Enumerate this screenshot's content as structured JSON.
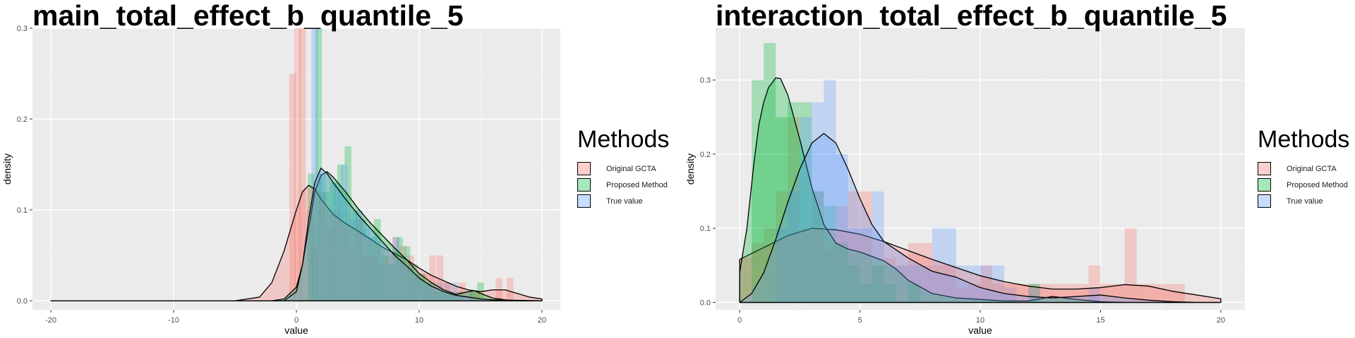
{
  "legend": {
    "title": "Methods",
    "items": [
      {
        "label": "Original GCTA",
        "color": "#F8766D"
      },
      {
        "label": "Proposed Method",
        "color": "#00BA38"
      },
      {
        "label": "True value",
        "color": "#619CFF"
      }
    ]
  },
  "chart_data": [
    {
      "type": "area",
      "title": "main_total_effect_b_quantile_5",
      "xlabel": "value",
      "ylabel": "density",
      "xlim": [
        -21.5,
        21.5
      ],
      "ylim": [
        -0.01,
        0.3
      ],
      "xticks": [
        -20,
        -10,
        0,
        10,
        20
      ],
      "xtick_labels": [
        "-20",
        "-10",
        "0",
        "10",
        "20"
      ],
      "yticks": [
        0.0,
        0.1,
        0.2,
        0.3
      ],
      "ytick_labels": [
        "0.0",
        "0.1",
        "0.2",
        "0.3"
      ],
      "grid": true,
      "legend_position": "right",
      "histograms": [
        {
          "name": "Original GCTA",
          "bins": [
            [
              -0.3,
              0.25
            ],
            [
              0.1,
              0.3
            ],
            [
              0.5,
              0.3
            ],
            [
              1.1,
              0.1
            ],
            [
              1.5,
              0.06
            ],
            [
              2.1,
              0.12
            ],
            [
              2.7,
              0.08
            ],
            [
              3.3,
              0.1
            ],
            [
              3.9,
              0.08
            ],
            [
              4.5,
              0.06
            ],
            [
              5.1,
              0.09
            ],
            [
              5.7,
              0.05
            ],
            [
              6.3,
              0.05
            ],
            [
              6.9,
              0.04
            ],
            [
              7.5,
              0.05
            ],
            [
              8.1,
              0.07
            ],
            [
              8.7,
              0.06
            ],
            [
              9.3,
              0.05
            ],
            [
              9.9,
              0.03
            ],
            [
              10.5,
              0.03
            ],
            [
              11.1,
              0.05
            ],
            [
              11.7,
              0.05
            ],
            [
              12.3,
              0.02
            ],
            [
              12.9,
              0.01
            ],
            [
              13.5,
              0.02
            ],
            [
              14.1,
              0.01
            ],
            [
              14.7,
              0.01
            ],
            [
              16.5,
              0.025
            ],
            [
              17.4,
              0.025
            ]
          ]
        },
        {
          "name": "Proposed Method",
          "bins": [
            [
              1.2,
              0.14
            ],
            [
              1.8,
              0.3
            ],
            [
              2.4,
              0.12
            ],
            [
              3.0,
              0.13
            ],
            [
              3.6,
              0.15
            ],
            [
              4.2,
              0.17
            ],
            [
              4.8,
              0.1
            ],
            [
              5.4,
              0.09
            ],
            [
              6.0,
              0.07
            ],
            [
              6.6,
              0.09
            ],
            [
              7.2,
              0.05
            ],
            [
              7.8,
              0.04
            ],
            [
              8.4,
              0.07
            ],
            [
              9.0,
              0.06
            ],
            [
              9.6,
              0.04
            ],
            [
              10.2,
              0.03
            ],
            [
              10.8,
              0.02
            ],
            [
              11.4,
              0.01
            ],
            [
              12.0,
              0.01
            ],
            [
              12.6,
              0.01
            ],
            [
              13.2,
              0.01
            ],
            [
              14.4,
              0.01
            ],
            [
              15.0,
              0.02
            ]
          ]
        },
        {
          "name": "True value",
          "bins": [
            [
              1.5,
              0.3
            ],
            [
              2.1,
              0.14
            ],
            [
              2.7,
              0.1
            ],
            [
              3.3,
              0.13
            ],
            [
              3.9,
              0.15
            ],
            [
              4.5,
              0.09
            ],
            [
              5.1,
              0.1
            ],
            [
              5.7,
              0.08
            ],
            [
              6.3,
              0.07
            ],
            [
              6.9,
              0.06
            ],
            [
              7.5,
              0.04
            ],
            [
              8.1,
              0.07
            ],
            [
              8.7,
              0.05
            ],
            [
              9.3,
              0.04
            ],
            [
              9.9,
              0.03
            ],
            [
              10.5,
              0.02
            ],
            [
              11.1,
              0.02
            ],
            [
              11.7,
              0.02
            ],
            [
              12.3,
              0.02
            ],
            [
              12.9,
              0.02
            ],
            [
              13.5,
              0.01
            ],
            [
              14.1,
              0.01
            ]
          ]
        }
      ],
      "densities": [
        {
          "name": "Original GCTA",
          "x": [
            -20,
            -5,
            -3,
            -2,
            -1,
            0,
            0.5,
            1,
            1.5,
            2,
            3,
            4,
            5,
            6,
            7,
            8,
            9,
            10,
            11,
            12,
            13,
            14,
            15,
            16,
            17,
            18,
            19,
            20
          ],
          "y": [
            0,
            0,
            0.004,
            0.02,
            0.055,
            0.1,
            0.12,
            0.127,
            0.123,
            0.112,
            0.095,
            0.085,
            0.077,
            0.068,
            0.059,
            0.052,
            0.045,
            0.036,
            0.028,
            0.022,
            0.016,
            0.012,
            0.01,
            0.012,
            0.012,
            0.008,
            0.004,
            0.002
          ]
        },
        {
          "name": "Proposed Method",
          "x": [
            -20,
            -2,
            -1,
            0,
            0.5,
            1,
            1.5,
            2,
            2.5,
            3,
            4,
            5,
            6,
            7,
            8,
            9,
            10,
            11,
            12,
            13,
            14,
            14.5,
            15,
            16,
            17,
            18,
            20
          ],
          "y": [
            0,
            0,
            0.002,
            0.015,
            0.04,
            0.08,
            0.12,
            0.138,
            0.142,
            0.136,
            0.12,
            0.102,
            0.086,
            0.072,
            0.058,
            0.045,
            0.03,
            0.02,
            0.012,
            0.007,
            0.01,
            0.011,
            0.008,
            0.003,
            0.001,
            0,
            0
          ]
        },
        {
          "name": "True value",
          "x": [
            -20,
            -1,
            0,
            0.5,
            1,
            1.5,
            2,
            2.5,
            3,
            4,
            5,
            6,
            7,
            8,
            9,
            10,
            11,
            12,
            13,
            14,
            15,
            16,
            20
          ],
          "y": [
            0,
            0,
            0.01,
            0.04,
            0.09,
            0.13,
            0.146,
            0.14,
            0.13,
            0.112,
            0.095,
            0.08,
            0.065,
            0.05,
            0.038,
            0.025,
            0.016,
            0.01,
            0.006,
            0.004,
            0.002,
            0.001,
            0
          ]
        }
      ]
    },
    {
      "type": "area",
      "title": "interaction_total_effect_b_quantile_5",
      "xlabel": "value",
      "ylabel": "density",
      "xlim": [
        -1,
        21
      ],
      "ylim": [
        -0.01,
        0.37
      ],
      "xticks": [
        0,
        5,
        10,
        15,
        20
      ],
      "xtick_labels": [
        "0",
        "5",
        "10",
        "15",
        "20"
      ],
      "yticks": [
        0.0,
        0.1,
        0.2,
        0.3
      ],
      "ytick_labels": [
        "0.0",
        "0.1",
        "0.2",
        "0.3"
      ],
      "grid": true,
      "legend_position": "right",
      "histograms": [
        {
          "name": "Original GCTA",
          "bins": [
            [
              0.25,
              0.06
            ],
            [
              0.75,
              0.08
            ],
            [
              1.25,
              0.1
            ],
            [
              1.75,
              0.15
            ],
            [
              2.25,
              0.25
            ],
            [
              2.75,
              0.1
            ],
            [
              3.25,
              0.15
            ],
            [
              3.75,
              0.07
            ],
            [
              4.25,
              0.13
            ],
            [
              4.75,
              0.15
            ],
            [
              5.25,
              0.15
            ],
            [
              5.75,
              0.05
            ],
            [
              6.25,
              0.06
            ],
            [
              6.75,
              0.05
            ],
            [
              7.25,
              0.08
            ],
            [
              7.75,
              0.08
            ],
            [
              8.25,
              0.05
            ],
            [
              8.75,
              0.05
            ],
            [
              9.25,
              0.02
            ],
            [
              9.75,
              0.025
            ],
            [
              10.25,
              0.05
            ],
            [
              10.75,
              0.025
            ],
            [
              11.25,
              0.025
            ],
            [
              11.75,
              0.025
            ],
            [
              12.25,
              0.025
            ],
            [
              12.75,
              0.025
            ],
            [
              13.25,
              0.025
            ],
            [
              13.75,
              0.025
            ],
            [
              14.25,
              0.025
            ],
            [
              14.75,
              0.05
            ],
            [
              15.25,
              0.025
            ],
            [
              15.75,
              0.025
            ],
            [
              16.25,
              0.1
            ],
            [
              16.75,
              0.025
            ],
            [
              17.25,
              0.025
            ],
            [
              17.75,
              0.025
            ],
            [
              18.25,
              0.025
            ]
          ]
        },
        {
          "name": "Proposed Method",
          "bins": [
            [
              0.75,
              0.3
            ],
            [
              1.25,
              0.35
            ],
            [
              1.75,
              0.25
            ],
            [
              2.25,
              0.27
            ],
            [
              2.75,
              0.27
            ],
            [
              3.25,
              0.15
            ],
            [
              3.75,
              0.13
            ],
            [
              4.25,
              0.08
            ],
            [
              4.75,
              0.05
            ],
            [
              5.25,
              0.025
            ],
            [
              5.75,
              0.05
            ],
            [
              6.25,
              0.025
            ],
            [
              7.25,
              0.025
            ],
            [
              12.25,
              0.025
            ]
          ]
        },
        {
          "name": "True value",
          "bins": [
            [
              1.75,
              0.1
            ],
            [
              2.25,
              0.15
            ],
            [
              2.75,
              0.25
            ],
            [
              3.25,
              0.27
            ],
            [
              3.75,
              0.3
            ],
            [
              4.25,
              0.2
            ],
            [
              4.75,
              0.1
            ],
            [
              5.25,
              0.1
            ],
            [
              5.75,
              0.15
            ],
            [
              6.25,
              0.05
            ],
            [
              6.75,
              0.05
            ],
            [
              7.25,
              0.05
            ],
            [
              7.75,
              0.05
            ],
            [
              8.25,
              0.1
            ],
            [
              8.75,
              0.1
            ],
            [
              9.25,
              0.05
            ],
            [
              9.75,
              0.05
            ],
            [
              10.25,
              0.05
            ],
            [
              10.75,
              0.05
            ],
            [
              11.25,
              0.02
            ],
            [
              12.25,
              0.02
            ],
            [
              14.75,
              0.02
            ]
          ]
        }
      ],
      "densities": [
        {
          "name": "Original GCTA",
          "x": [
            0,
            0.5,
            1,
            1.5,
            2,
            3,
            4,
            5,
            6,
            7,
            8,
            9,
            10,
            11,
            12,
            13,
            14,
            15,
            16,
            17,
            18,
            19,
            20
          ],
          "y": [
            0.058,
            0.066,
            0.074,
            0.082,
            0.09,
            0.1,
            0.098,
            0.092,
            0.082,
            0.07,
            0.058,
            0.047,
            0.036,
            0.028,
            0.022,
            0.018,
            0.018,
            0.02,
            0.024,
            0.022,
            0.015,
            0.01,
            0.005
          ]
        },
        {
          "name": "Proposed Method",
          "x": [
            0,
            0.3,
            0.6,
            0.8,
            1,
            1.2,
            1.5,
            1.7,
            2,
            2.5,
            3,
            3.5,
            4,
            4.5,
            5,
            5.5,
            6,
            6.5,
            7,
            8,
            9,
            10,
            11,
            12,
            13,
            14,
            15,
            16,
            17,
            18,
            19,
            20
          ],
          "y": [
            0.04,
            0.1,
            0.19,
            0.24,
            0.27,
            0.29,
            0.303,
            0.302,
            0.28,
            0.22,
            0.155,
            0.105,
            0.08,
            0.072,
            0.068,
            0.062,
            0.056,
            0.045,
            0.03,
            0.012,
            0.006,
            0.004,
            0.002,
            0.002,
            0.008,
            0.004,
            0.001,
            0,
            0,
            0,
            0,
            0
          ]
        },
        {
          "name": "True value",
          "x": [
            0,
            0.5,
            1,
            1.5,
            2,
            2.5,
            3,
            3.5,
            4,
            4.5,
            5,
            5.5,
            6,
            7,
            8,
            8.5,
            9,
            10,
            11,
            12,
            13,
            14,
            15,
            16,
            17,
            18,
            19,
            20
          ],
          "y": [
            0,
            0.012,
            0.04,
            0.085,
            0.135,
            0.18,
            0.215,
            0.228,
            0.215,
            0.18,
            0.14,
            0.105,
            0.082,
            0.06,
            0.042,
            0.038,
            0.034,
            0.02,
            0.012,
            0.008,
            0.006,
            0.008,
            0.01,
            0.006,
            0.003,
            0.001,
            0,
            0
          ]
        }
      ]
    }
  ]
}
